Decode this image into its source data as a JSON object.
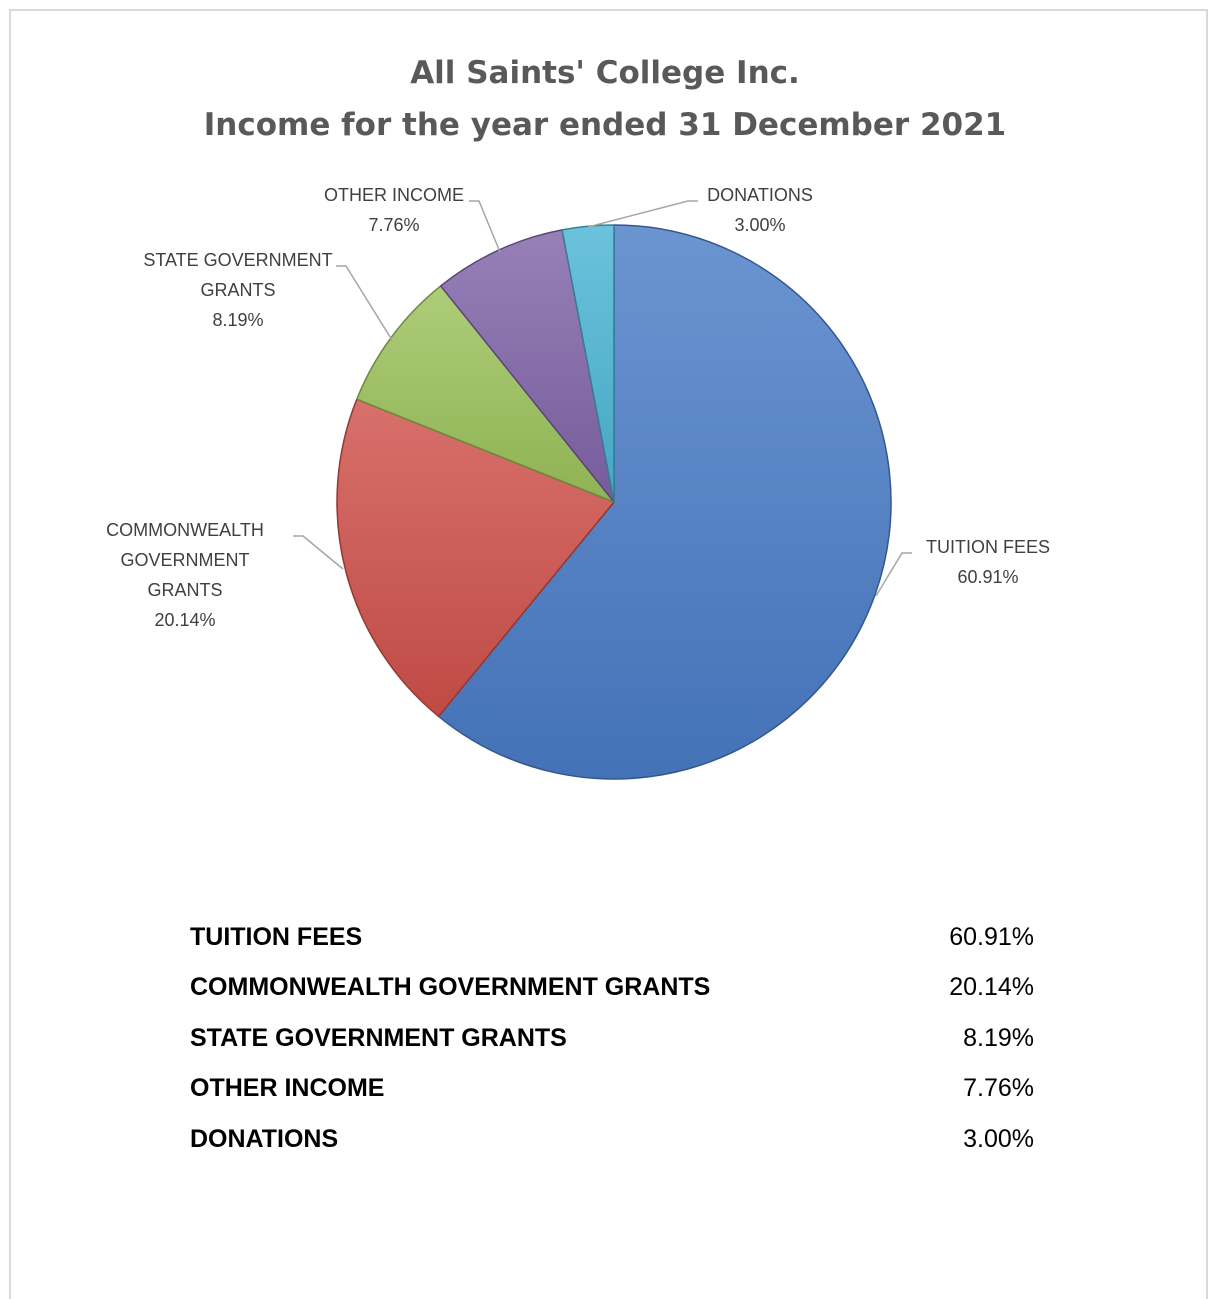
{
  "chart_data": {
    "type": "pie",
    "title": "All Saints' College Inc.",
    "subtitle": "Income for the year ended 31 December 2021",
    "categories": [
      "TUITION FEES",
      "COMMONWEALTH GOVERNMENT GRANTS",
      "STATE GOVERNMENT GRANTS",
      "OTHER INCOME",
      "DONATIONS"
    ],
    "values": [
      60.91,
      20.14,
      8.19,
      7.76,
      3.0
    ],
    "value_labels": [
      "60.91%",
      "20.14%",
      "8.19%",
      "7.76%",
      "3.00%"
    ],
    "slice_labels": [
      [
        "TUITION FEES",
        "60.91%"
      ],
      [
        "COMMONWEALTH",
        "GOVERNMENT",
        "GRANTS",
        "20.14%"
      ],
      [
        "STATE GOVERNMENT",
        "GRANTS",
        "8.19%"
      ],
      [
        "OTHER INCOME",
        "7.76%"
      ],
      [
        "DONATIONS",
        "3.00%"
      ]
    ],
    "colors": [
      "#4a7cc7",
      "#d0504b",
      "#9bc25a",
      "#8064a8",
      "#4bb4d4"
    ],
    "start_angle": "12 o'clock",
    "direction": "clockwise"
  },
  "summary_table": [
    {
      "label": "TUITION FEES",
      "value": "60.91%"
    },
    {
      "label": "COMMONWEALTH GOVERNMENT GRANTS",
      "value": "20.14%"
    },
    {
      "label": "STATE GOVERNMENT GRANTS",
      "value": "8.19%"
    },
    {
      "label": "OTHER INCOME",
      "value": "7.76%"
    },
    {
      "label": "DONATIONS",
      "value": "3.00%"
    }
  ]
}
